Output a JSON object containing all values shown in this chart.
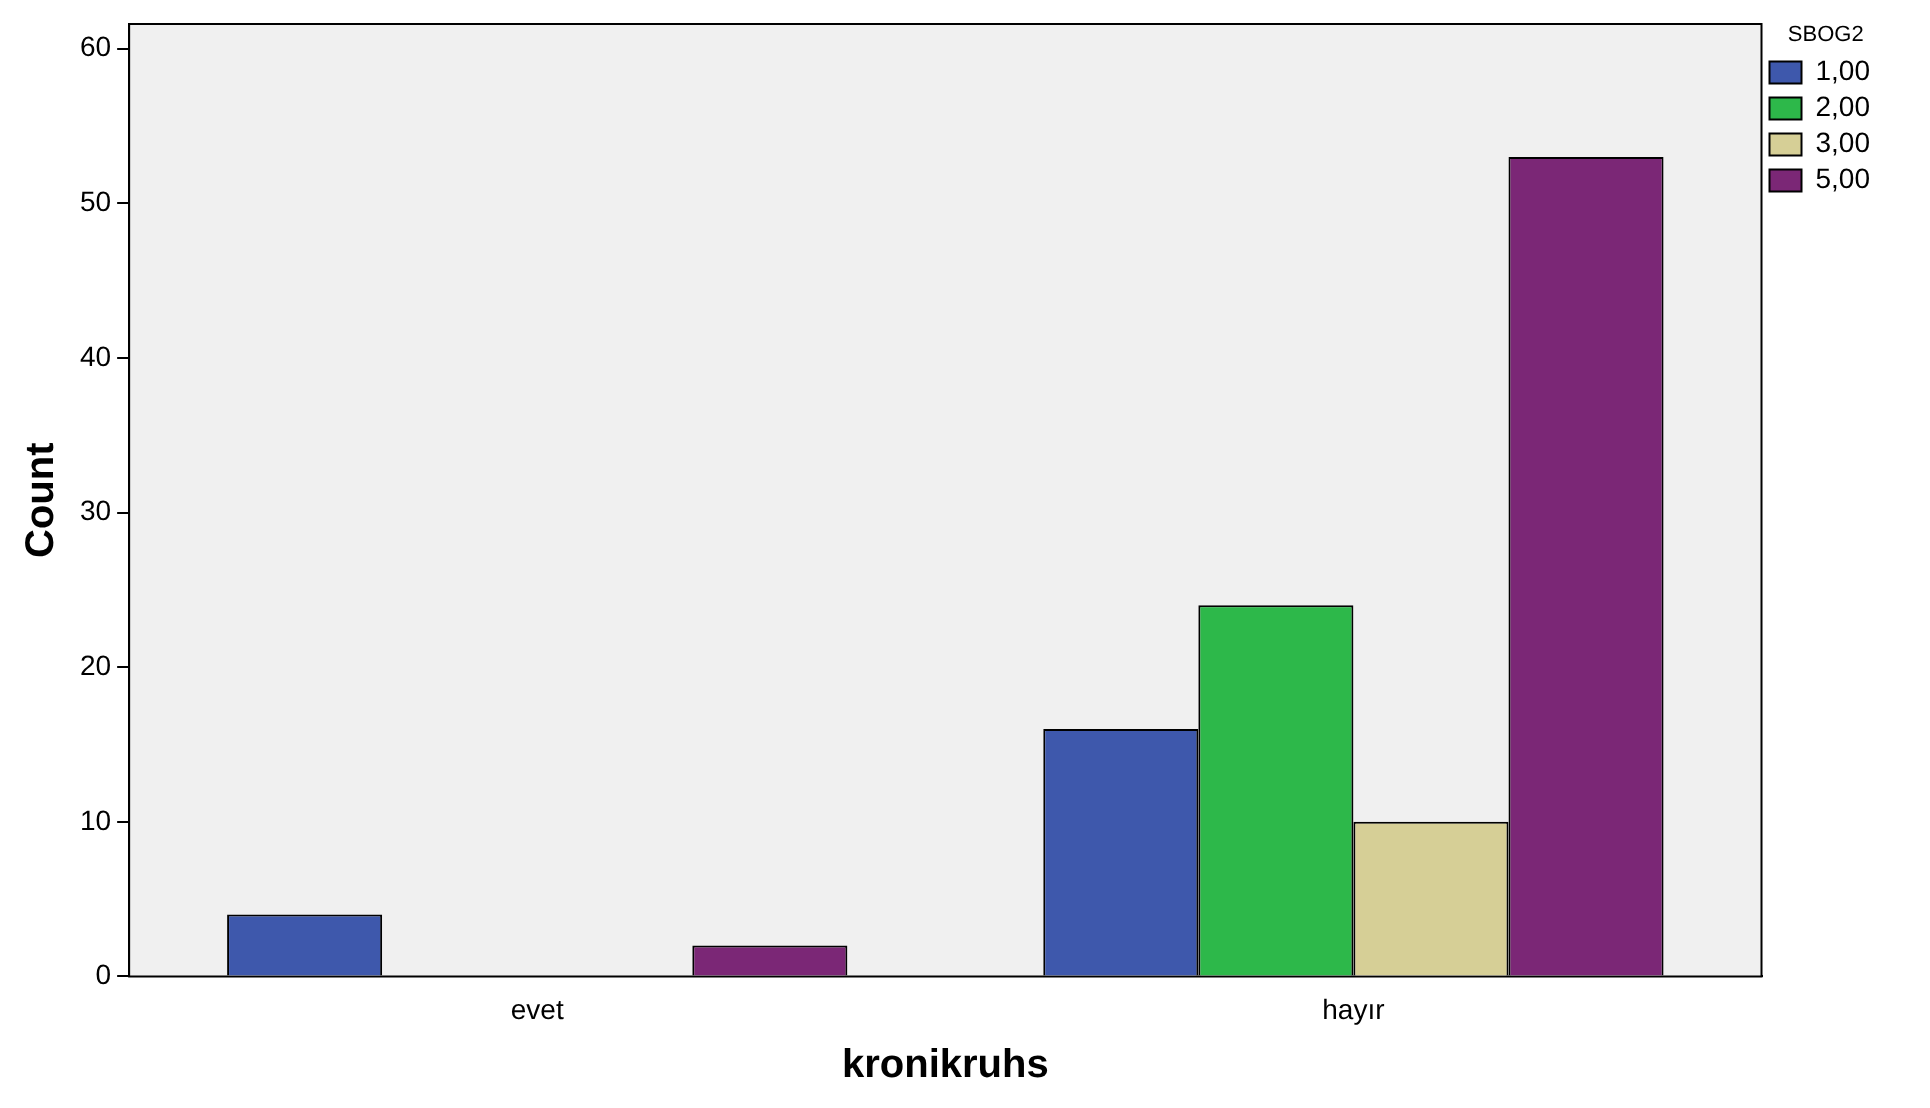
{
  "chart_data": {
    "type": "bar",
    "xlabel": "kronikruhs",
    "ylabel": "Count",
    "legend_title": "SBOG2",
    "categories": [
      "evet",
      "hayır"
    ],
    "series": [
      {
        "name": "1,00",
        "color": "#3e58ac",
        "values": [
          4,
          16
        ]
      },
      {
        "name": "2,00",
        "color": "#2db84a",
        "values": [
          0,
          24
        ]
      },
      {
        "name": "3,00",
        "color": "#d6cf96",
        "values": [
          0,
          10
        ]
      },
      {
        "name": "5,00",
        "color": "#7b2776",
        "values": [
          2,
          53
        ]
      }
    ],
    "ylim": [
      0,
      61.6
    ],
    "yticks": [
      0,
      10,
      20,
      30,
      40,
      50,
      60
    ],
    "grid": false,
    "legend": "top right"
  }
}
